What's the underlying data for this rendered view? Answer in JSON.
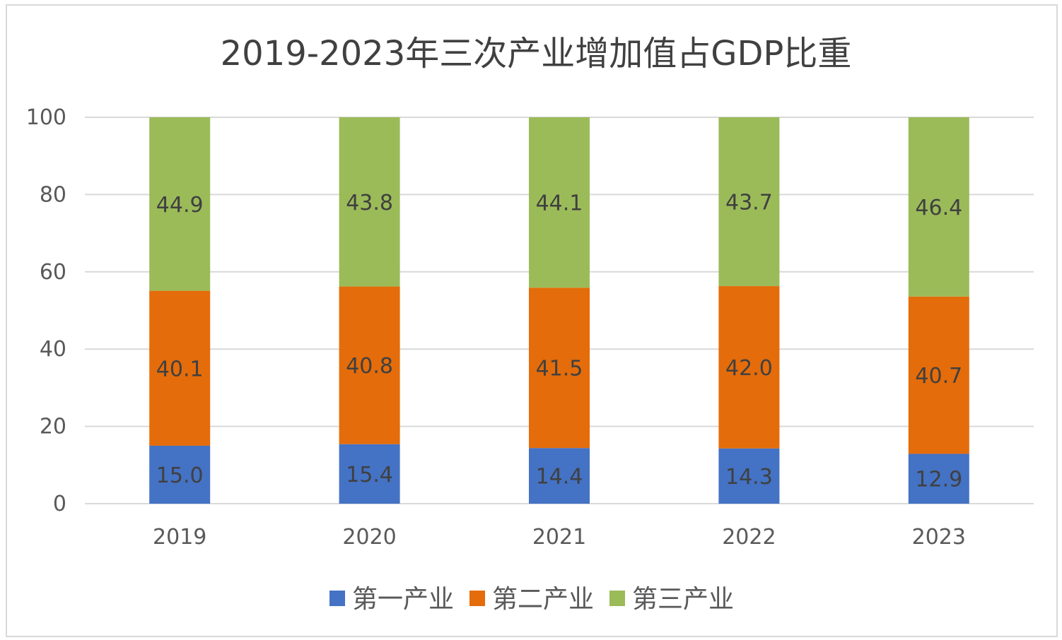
{
  "chart_data": {
    "type": "bar",
    "stacked": true,
    "title": "2019-2023年三次产业增加值占GDP比重",
    "categories": [
      "2019",
      "2020",
      "2021",
      "2022",
      "2023"
    ],
    "series": [
      {
        "name": "第一产业",
        "color": "#4472c4",
        "values": [
          15.0,
          15.4,
          14.4,
          14.3,
          12.9
        ]
      },
      {
        "name": "第二产业",
        "color": "#e46c0a",
        "values": [
          40.1,
          40.8,
          41.5,
          42.0,
          40.7
        ]
      },
      {
        "name": "第三产业",
        "color": "#9bbb59",
        "values": [
          44.9,
          43.8,
          44.1,
          43.7,
          46.4
        ]
      }
    ],
    "data_labels": [
      [
        "15.0",
        "15.4",
        "14.4",
        "14.3",
        "12.9"
      ],
      [
        "40.1",
        "40.8",
        "41.5",
        "42.0",
        "40.7"
      ],
      [
        "44.9",
        "43.8",
        "44.1",
        "43.7",
        "46.4"
      ]
    ],
    "ylim": [
      0,
      100
    ],
    "yticks": [
      "0",
      "20",
      "40",
      "60",
      "80",
      "100"
    ],
    "grid": true,
    "legend_position": "bottom",
    "gridline_color": "#d9d9d9"
  }
}
